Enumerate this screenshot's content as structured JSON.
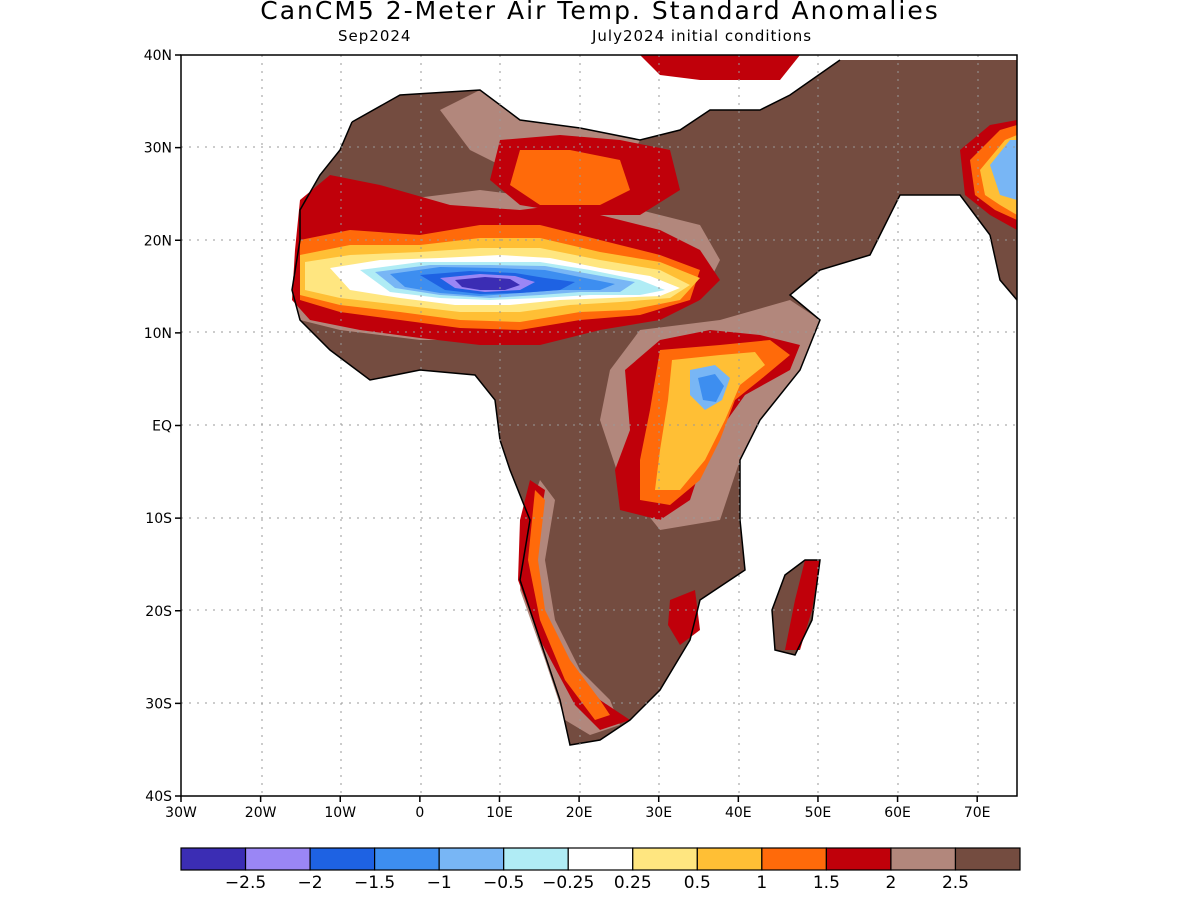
{
  "header": {
    "title": "CanCM5 2-Meter Air Temp. Standard Anomalies",
    "valid_month": "Sep2024",
    "initial_conditions": "July2024 initial conditions"
  },
  "axes": {
    "lat_labels": [
      "40N",
      "30N",
      "20N",
      "10N",
      "EQ",
      "10S",
      "20S",
      "30S",
      "40S"
    ],
    "lat_values": [
      40,
      30,
      20,
      10,
      0,
      -10,
      -20,
      -30,
      -40
    ],
    "lon_labels": [
      "30W",
      "20W",
      "10W",
      "0",
      "10E",
      "20E",
      "30E",
      "40E",
      "50E",
      "60E",
      "70E"
    ],
    "lon_values": [
      -30,
      -20,
      -10,
      0,
      10,
      20,
      30,
      40,
      50,
      60,
      70
    ],
    "lon_range": [
      -30,
      75
    ],
    "lat_range": [
      -40,
      40
    ],
    "grid": "dotted"
  },
  "legend": {
    "colors": [
      "#3b2db4",
      "#9a86f5",
      "#1e62e3",
      "#3d8ef0",
      "#78b6f5",
      "#b0ecf5",
      "#ffffff",
      "#ffe680",
      "#ffbf35",
      "#ff6a0a",
      "#c0000a",
      "#b2877c",
      "#744c40"
    ],
    "labels": [
      "−2.5",
      "−2",
      "−1.5",
      "−1",
      "−0.5",
      "−0.25",
      "0.25",
      "0.5",
      "1",
      "1.5",
      "2",
      "2.5"
    ]
  }
}
